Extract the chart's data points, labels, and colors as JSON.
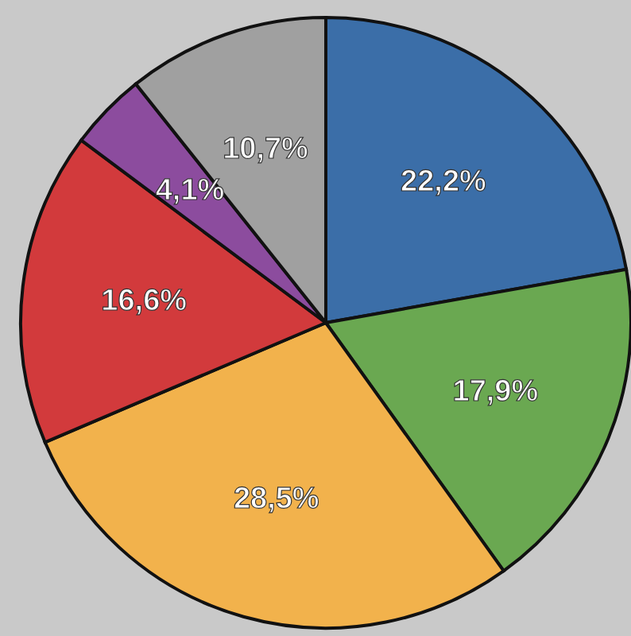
{
  "chart_data": {
    "type": "pie",
    "categories": [
      null,
      null,
      null,
      null,
      null,
      null
    ],
    "values": [
      22.2,
      17.9,
      28.5,
      16.6,
      4.1,
      10.7
    ],
    "colors": [
      "#3b6ea8",
      "#6aa851",
      "#f2b24c",
      "#d23a3c",
      "#8c4c9e",
      "#a0a0a0"
    ],
    "value_labels": [
      "22,2%",
      "17,9%",
      "28,5%",
      "16,6%",
      "4,1%",
      "10,7%"
    ],
    "legend": false
  }
}
